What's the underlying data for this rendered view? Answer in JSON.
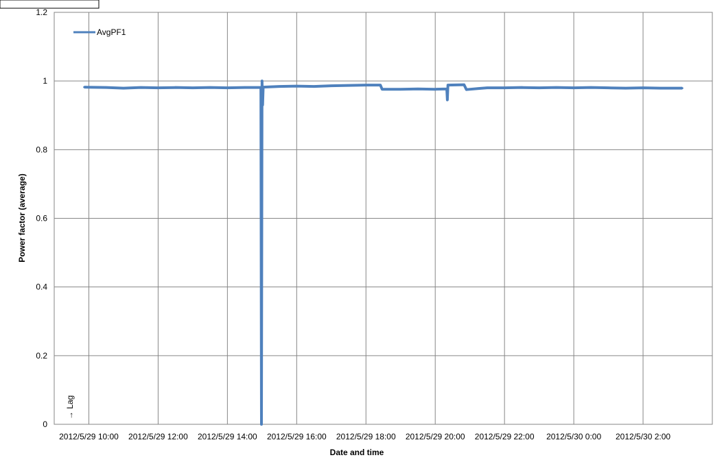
{
  "chart_data": {
    "type": "line",
    "title": "",
    "xlabel": "Date and time",
    "ylabel": "Power factor (average)",
    "ylim": [
      0,
      1.2
    ],
    "y_ticks": [
      "0",
      "0.2",
      "0.4",
      "0.6",
      "0.8",
      "1",
      "1.2"
    ],
    "x_range": [
      "2012-05-29T09:00",
      "2012-05-30T04:00"
    ],
    "x_ticks": [
      {
        "time": "2012-05-29T10:00",
        "label": "2012/5/29 10:00"
      },
      {
        "time": "2012-05-29T12:00",
        "label": "2012/5/29 12:00"
      },
      {
        "time": "2012-05-29T14:00",
        "label": "2012/5/29 14:00"
      },
      {
        "time": "2012-05-29T16:00",
        "label": "2012/5/29 16:00"
      },
      {
        "time": "2012-05-29T18:00",
        "label": "2012/5/29 18:00"
      },
      {
        "time": "2012-05-29T20:00",
        "label": "2012/5/29 20:00"
      },
      {
        "time": "2012-05-29T22:00",
        "label": "2012/5/29 22:00"
      },
      {
        "time": "2012-05-30T00:00",
        "label": "2012/5/30 0:00"
      },
      {
        "time": "2012-05-30T02:00",
        "label": "2012/5/30 2:00"
      }
    ],
    "grid": true,
    "legend": "top-left",
    "annotation": "→ Lag",
    "series": [
      {
        "name": "AvgPF1",
        "color": "#4f81bd",
        "points": [
          [
            "2012-05-29T09:52",
            0.982
          ],
          [
            "2012-05-29T10:30",
            0.981
          ],
          [
            "2012-05-29T11:00",
            0.979
          ],
          [
            "2012-05-29T11:30",
            0.981
          ],
          [
            "2012-05-29T12:00",
            0.98
          ],
          [
            "2012-05-29T12:30",
            0.981
          ],
          [
            "2012-05-29T13:00",
            0.98
          ],
          [
            "2012-05-29T13:30",
            0.981
          ],
          [
            "2012-05-29T14:00",
            0.98
          ],
          [
            "2012-05-29T14:30",
            0.981
          ],
          [
            "2012-05-29T14:58",
            0.981
          ],
          [
            "2012-05-29T14:59",
            0.0
          ],
          [
            "2012-05-29T15:00",
            1.0
          ],
          [
            "2012-05-29T15:01",
            0.93
          ],
          [
            "2012-05-29T15:02",
            0.982
          ],
          [
            "2012-05-29T15:30",
            0.984
          ],
          [
            "2012-05-29T16:00",
            0.985
          ],
          [
            "2012-05-29T16:30",
            0.984
          ],
          [
            "2012-05-29T17:00",
            0.986
          ],
          [
            "2012-05-29T17:30",
            0.987
          ],
          [
            "2012-05-29T18:00",
            0.988
          ],
          [
            "2012-05-29T18:25",
            0.988
          ],
          [
            "2012-05-29T18:28",
            0.976
          ],
          [
            "2012-05-29T19:00",
            0.976
          ],
          [
            "2012-05-29T19:30",
            0.977
          ],
          [
            "2012-05-29T20:00",
            0.976
          ],
          [
            "2012-05-29T20:20",
            0.977
          ],
          [
            "2012-05-29T20:21",
            0.945
          ],
          [
            "2012-05-29T20:22",
            0.988
          ],
          [
            "2012-05-29T20:50",
            0.989
          ],
          [
            "2012-05-29T20:54",
            0.975
          ],
          [
            "2012-05-29T21:15",
            0.978
          ],
          [
            "2012-05-29T21:30",
            0.98
          ],
          [
            "2012-05-29T22:00",
            0.98
          ],
          [
            "2012-05-29T22:30",
            0.981
          ],
          [
            "2012-05-29T23:00",
            0.98
          ],
          [
            "2012-05-29T23:30",
            0.981
          ],
          [
            "2012-05-30T00:00",
            0.98
          ],
          [
            "2012-05-30T00:30",
            0.981
          ],
          [
            "2012-05-30T01:00",
            0.98
          ],
          [
            "2012-05-30T01:30",
            0.979
          ],
          [
            "2012-05-30T02:00",
            0.98
          ],
          [
            "2012-05-30T02:30",
            0.979
          ],
          [
            "2012-05-30T03:08",
            0.979
          ]
        ]
      }
    ]
  }
}
